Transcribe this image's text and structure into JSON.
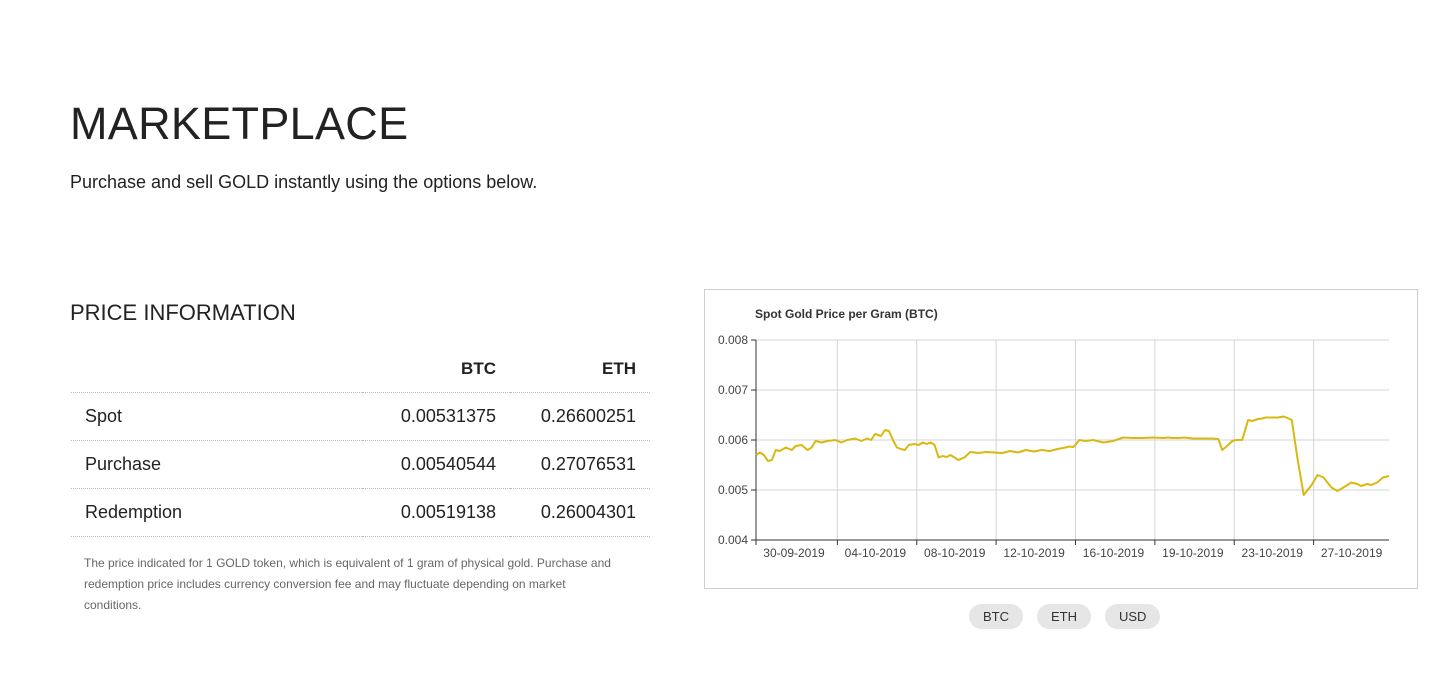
{
  "header": {
    "title": "MARKETPLACE",
    "subtitle": "Purchase and sell GOLD instantly using the options below."
  },
  "price_info": {
    "title": "PRICE INFORMATION",
    "columns": [
      "",
      "BTC",
      "ETH"
    ],
    "rows": [
      {
        "label": "Spot",
        "btc": "0.00531375",
        "eth": "0.26600251"
      },
      {
        "label": "Purchase",
        "btc": "0.00540544",
        "eth": "0.27076531"
      },
      {
        "label": "Redemption",
        "btc": "0.00519138",
        "eth": "0.26004301"
      }
    ],
    "note": "The price indicated for 1 GOLD token, which is equivalent of 1 gram of physical gold. Purchase and redemption price includes currency conversion fee and may fluctuate depending on market conditions."
  },
  "currency_buttons": [
    "BTC",
    "ETH",
    "USD"
  ],
  "colors": {
    "line": "#d9b812",
    "grid": "#d4d4d4",
    "axis": "#333333",
    "button_bg": "#e6e6e6"
  },
  "chart_data": {
    "type": "line",
    "title": "Spot Gold Price per Gram (BTC)",
    "xlabel": "",
    "ylabel": "",
    "ylim": [
      0.004,
      0.008
    ],
    "y_ticks": [
      "0.008",
      "0.007",
      "0.006",
      "0.005",
      "0.004"
    ],
    "x_ticks": [
      "30-09-2019",
      "04-10-2019",
      "08-10-2019",
      "12-10-2019",
      "16-10-2019",
      "19-10-2019",
      "23-10-2019",
      "27-10-2019"
    ],
    "grid": true,
    "legend": "none",
    "series": [
      {
        "x": [
          0,
          0.2,
          0.4,
          0.6,
          0.8,
          1.0,
          1.2,
          1.5,
          1.8,
          2.0,
          2.3,
          2.6,
          2.8,
          3.0,
          3.3,
          3.6,
          4.0,
          4.3,
          4.6,
          5.0,
          5.3,
          5.6,
          5.8,
          6.0,
          6.3,
          6.5,
          6.7,
          6.9,
          7.1,
          7.3,
          7.5,
          7.7,
          8.0,
          8.2,
          8.4,
          8.6,
          8.8,
          9.0,
          9.2,
          9.4,
          9.6,
          9.8,
          10.0,
          10.2,
          10.5,
          10.8,
          11.2,
          11.6,
          12.0,
          12.4,
          12.8,
          13.2,
          13.6,
          14.0,
          14.4,
          14.8,
          15.2,
          15.6,
          15.8,
          16.0,
          16.3,
          16.6,
          17.0,
          17.5,
          18.0,
          18.5,
          19.0,
          19.5,
          20.0,
          20.5,
          20.8,
          21.0,
          21.3,
          21.6,
          22.0,
          22.5,
          23.0,
          23.3,
          23.5,
          23.8,
          24.0,
          24.2,
          24.5,
          24.8,
          25.0,
          25.3,
          25.5,
          25.7,
          26.0,
          26.3,
          26.6,
          27.0,
          27.3,
          27.6,
          28.0,
          28.3,
          28.6,
          29.0,
          29.3,
          29.6,
          30.0,
          30.3,
          30.5,
          30.8,
          31.0,
          31.3,
          31.6,
          31.9
        ],
        "y": [
          0.0057,
          0.00575,
          0.0057,
          0.00558,
          0.0056,
          0.0058,
          0.00578,
          0.00585,
          0.0058,
          0.00588,
          0.0059,
          0.0058,
          0.00585,
          0.00598,
          0.00595,
          0.00598,
          0.006,
          0.00595,
          0.006,
          0.00603,
          0.00598,
          0.00603,
          0.006,
          0.00612,
          0.00608,
          0.0062,
          0.00618,
          0.006,
          0.00585,
          0.00582,
          0.0058,
          0.0059,
          0.00592,
          0.0059,
          0.00595,
          0.00592,
          0.00595,
          0.0059,
          0.00565,
          0.00568,
          0.00566,
          0.0057,
          0.00565,
          0.0056,
          0.00565,
          0.00576,
          0.00574,
          0.00576,
          0.00575,
          0.00574,
          0.00578,
          0.00575,
          0.0058,
          0.00577,
          0.0058,
          0.00578,
          0.00582,
          0.00585,
          0.00587,
          0.00586,
          0.006,
          0.00598,
          0.006,
          0.00595,
          0.00598,
          0.00605,
          0.00604,
          0.00604,
          0.00605,
          0.00604,
          0.00605,
          0.00604,
          0.00604,
          0.00605,
          0.00603,
          0.00603,
          0.00603,
          0.00602,
          0.0058,
          0.0059,
          0.00598,
          0.006,
          0.006,
          0.0064,
          0.00638,
          0.00642,
          0.00643,
          0.00645,
          0.00645,
          0.00645,
          0.00647,
          0.0064,
          0.0056,
          0.0049,
          0.0051,
          0.0053,
          0.00525,
          0.00505,
          0.00498,
          0.00505,
          0.00515,
          0.00512,
          0.00508,
          0.00512,
          0.0051,
          0.00515,
          0.00525,
          0.00528
        ]
      }
    ]
  }
}
